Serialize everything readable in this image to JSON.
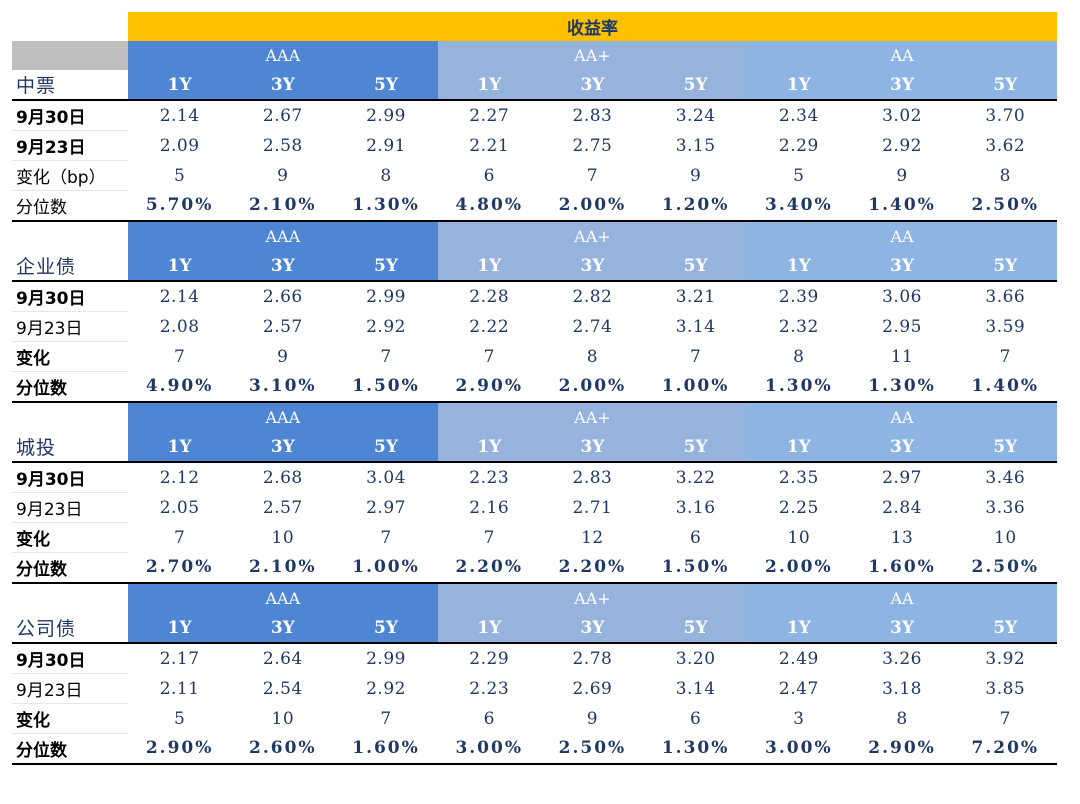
{
  "title": "收益率",
  "sections": [
    {
      "name": "中票",
      "groups": [
        "AAA",
        "AA+",
        "AA"
      ],
      "tenors": [
        "1Y",
        "3Y",
        "5Y"
      ],
      "rows": [
        {
          "label": "9月30日",
          "bold": true,
          "values": [
            "2.14",
            "2.67",
            "2.99",
            "2.27",
            "2.83",
            "3.24",
            "2.34",
            "3.02",
            "3.70"
          ]
        },
        {
          "label": "9月23日",
          "bold": true,
          "values": [
            "2.09",
            "2.58",
            "2.91",
            "2.21",
            "2.75",
            "3.15",
            "2.29",
            "2.92",
            "3.62"
          ]
        },
        {
          "label": "变化（bp）",
          "bold": false,
          "values": [
            "5",
            "9",
            "8",
            "6",
            "7",
            "9",
            "5",
            "9",
            "8"
          ]
        },
        {
          "label": "分位数",
          "bold": false,
          "values": [
            "5.70%",
            "2.10%",
            "1.30%",
            "4.80%",
            "2.00%",
            "1.20%",
            "3.40%",
            "1.40%",
            "2.50%"
          ]
        }
      ]
    },
    {
      "name": "企业债",
      "groups": [
        "AAA",
        "AA+",
        "AA"
      ],
      "tenors": [
        "1Y",
        "3Y",
        "5Y"
      ],
      "rows": [
        {
          "label": "9月30日",
          "bold": true,
          "values": [
            "2.14",
            "2.66",
            "2.99",
            "2.28",
            "2.82",
            "3.21",
            "2.39",
            "3.06",
            "3.66"
          ]
        },
        {
          "label": "9月23日",
          "bold": false,
          "values": [
            "2.08",
            "2.57",
            "2.92",
            "2.22",
            "2.74",
            "3.14",
            "2.32",
            "2.95",
            "3.59"
          ]
        },
        {
          "label": "变化",
          "bold": true,
          "values": [
            "7",
            "9",
            "7",
            "7",
            "8",
            "7",
            "8",
            "11",
            "7"
          ]
        },
        {
          "label": "分位数",
          "bold": true,
          "values": [
            "4.90%",
            "3.10%",
            "1.50%",
            "2.90%",
            "2.00%",
            "1.00%",
            "1.30%",
            "1.30%",
            "1.40%"
          ]
        }
      ]
    },
    {
      "name": "城投",
      "groups": [
        "AAA",
        "AA+",
        "AA"
      ],
      "tenors": [
        "1Y",
        "3Y",
        "5Y"
      ],
      "rows": [
        {
          "label": "9月30日",
          "bold": true,
          "values": [
            "2.12",
            "2.68",
            "3.04",
            "2.23",
            "2.83",
            "3.22",
            "2.35",
            "2.97",
            "3.46"
          ]
        },
        {
          "label": "9月23日",
          "bold": false,
          "values": [
            "2.05",
            "2.57",
            "2.97",
            "2.16",
            "2.71",
            "3.16",
            "2.25",
            "2.84",
            "3.36"
          ]
        },
        {
          "label": "变化",
          "bold": true,
          "values": [
            "7",
            "10",
            "7",
            "7",
            "12",
            "6",
            "10",
            "13",
            "10"
          ]
        },
        {
          "label": "分位数",
          "bold": true,
          "values": [
            "2.70%",
            "2.10%",
            "1.00%",
            "2.20%",
            "2.20%",
            "1.50%",
            "2.00%",
            "1.60%",
            "2.50%"
          ]
        }
      ]
    },
    {
      "name": "公司债",
      "groups": [
        "AAA",
        "AA+",
        "AA"
      ],
      "tenors": [
        "1Y",
        "3Y",
        "5Y"
      ],
      "rows": [
        {
          "label": "9月30日",
          "bold": true,
          "values": [
            "2.17",
            "2.64",
            "2.99",
            "2.29",
            "2.78",
            "3.20",
            "2.49",
            "3.26",
            "3.92"
          ]
        },
        {
          "label": "9月23日",
          "bold": false,
          "values": [
            "2.11",
            "2.54",
            "2.92",
            "2.23",
            "2.69",
            "3.14",
            "2.47",
            "3.18",
            "3.85"
          ]
        },
        {
          "label": "变化",
          "bold": true,
          "values": [
            "5",
            "10",
            "7",
            "6",
            "9",
            "6",
            "3",
            "8",
            "7"
          ]
        },
        {
          "label": "分位数",
          "bold": true,
          "values": [
            "2.90%",
            "2.60%",
            "1.60%",
            "3.00%",
            "2.50%",
            "1.30%",
            "3.00%",
            "2.90%",
            "7.20%"
          ]
        }
      ]
    }
  ],
  "colors": {
    "title_bg": "#ffc000",
    "aaa_bg": "#4f86d4",
    "aa_plus_bg": "#95b3dc",
    "aa_bg": "#8eb4e3",
    "text": "#1f3864"
  }
}
